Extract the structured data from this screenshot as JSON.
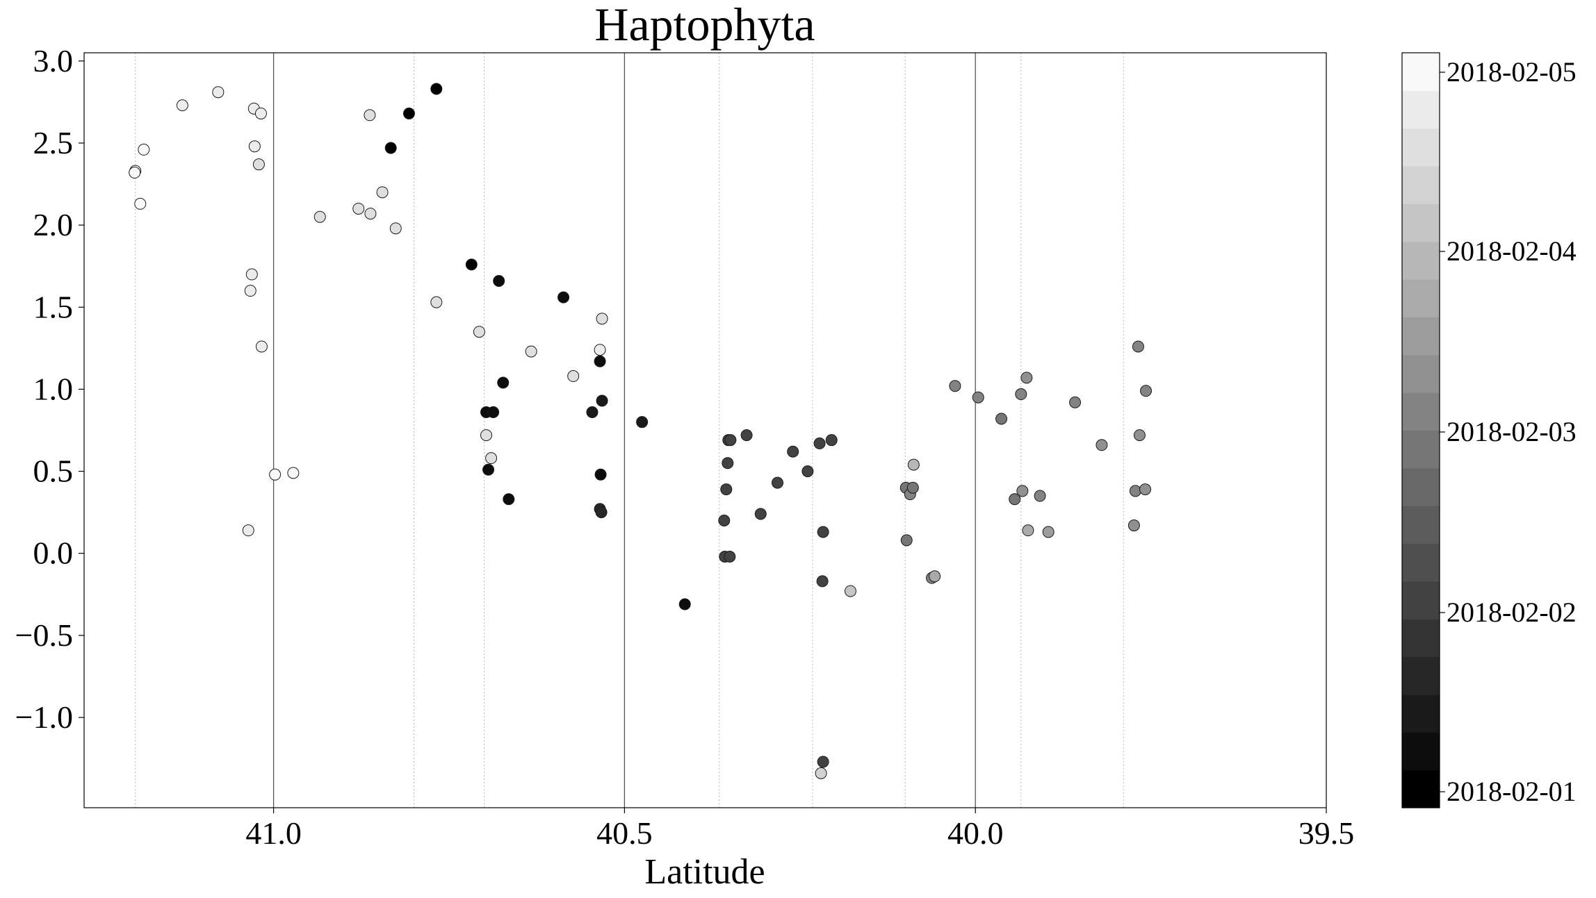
{
  "chart_data": {
    "type": "scatter",
    "title": "Haptophyta",
    "xlabel": "Latitude",
    "ylabel": "",
    "xlim": [
      41.27,
      39.5
    ],
    "ylim": [
      -1.55,
      3.05
    ],
    "x_reversed": true,
    "x_ticks": [
      {
        "value": 41.0,
        "label": "41.0"
      },
      {
        "value": 40.5,
        "label": "40.5"
      },
      {
        "value": 40.0,
        "label": "40.0"
      },
      {
        "value": 39.5,
        "label": "39.5"
      }
    ],
    "y_ticks": [
      {
        "value": 3.0,
        "label": "3.0"
      },
      {
        "value": 2.5,
        "label": "2.5"
      },
      {
        "value": 2.0,
        "label": "2.0"
      },
      {
        "value": 1.5,
        "label": "1.5"
      },
      {
        "value": 1.0,
        "label": "1.0"
      },
      {
        "value": 0.5,
        "label": "0.5"
      },
      {
        "value": 0.0,
        "label": "0.0"
      },
      {
        "value": -0.5,
        "label": "−0.5"
      },
      {
        "value": -1.0,
        "label": "−1.0"
      }
    ],
    "major_vlines": [
      41.0,
      40.5,
      40.0
    ],
    "minor_vlines": [
      41.197,
      40.8,
      40.7,
      40.365,
      40.232,
      40.1,
      39.935,
      39.789
    ],
    "colorbar": {
      "range": [
        "2018-02-01",
        "2018-02-05"
      ],
      "levels": 20,
      "tick_labels": [
        "2018-02-01",
        "2018-02-02",
        "2018-02-03",
        "2018-02-04",
        "2018-02-05"
      ],
      "color_dark": "#000000",
      "color_light": "#f9f9f9"
    },
    "point_fields": [
      "latitude",
      "value",
      "days_since_2018-02-01"
    ],
    "points": [
      [
        41.197,
        2.33,
        3.9
      ],
      [
        41.198,
        2.32,
        3.9
      ],
      [
        41.19,
        2.13,
        3.95
      ],
      [
        41.185,
        2.46,
        3.85
      ],
      [
        41.13,
        2.73,
        3.75
      ],
      [
        41.079,
        2.81,
        3.7
      ],
      [
        41.028,
        2.71,
        3.65
      ],
      [
        41.018,
        2.68,
        3.6
      ],
      [
        41.027,
        2.48,
        3.65
      ],
      [
        41.021,
        2.37,
        3.55
      ],
      [
        41.031,
        1.7,
        3.7
      ],
      [
        41.033,
        1.6,
        3.7
      ],
      [
        41.017,
        1.26,
        3.65
      ],
      [
        41.036,
        0.14,
        3.75
      ],
      [
        40.998,
        0.48,
        3.8
      ],
      [
        40.972,
        0.49,
        3.8
      ],
      [
        40.863,
        2.67,
        3.45
      ],
      [
        40.845,
        2.2,
        3.4
      ],
      [
        40.862,
        2.07,
        3.45
      ],
      [
        40.879,
        2.1,
        3.4
      ],
      [
        40.934,
        2.05,
        3.5
      ],
      [
        40.826,
        1.98,
        3.5
      ],
      [
        40.768,
        1.53,
        3.5
      ],
      [
        40.707,
        1.35,
        3.5
      ],
      [
        40.697,
        0.72,
        3.5
      ],
      [
        40.69,
        0.58,
        3.55
      ],
      [
        40.633,
        1.23,
        3.45
      ],
      [
        40.573,
        1.08,
        3.5
      ],
      [
        40.532,
        1.43,
        3.55
      ],
      [
        40.535,
        1.24,
        3.6
      ],
      [
        40.807,
        2.68,
        0.1
      ],
      [
        40.768,
        2.83,
        0.05
      ],
      [
        40.833,
        2.47,
        0.1
      ],
      [
        40.718,
        1.76,
        0.1
      ],
      [
        40.679,
        1.66,
        0.35
      ],
      [
        40.673,
        1.04,
        0.3
      ],
      [
        40.697,
        0.86,
        0.35
      ],
      [
        40.687,
        0.86,
        0.35
      ],
      [
        40.694,
        0.51,
        0.3
      ],
      [
        40.665,
        0.33,
        0.35
      ],
      [
        40.587,
        1.56,
        0.3
      ],
      [
        40.535,
        1.17,
        0.35
      ],
      [
        40.532,
        0.93,
        0.4
      ],
      [
        40.546,
        0.86,
        0.45
      ],
      [
        40.534,
        0.48,
        0.35
      ],
      [
        40.535,
        0.27,
        0.6
      ],
      [
        40.533,
        0.25,
        0.65
      ],
      [
        40.475,
        0.8,
        0.45
      ],
      [
        40.414,
        -0.31,
        0.3
      ],
      [
        40.352,
        0.69,
        1.1
      ],
      [
        40.349,
        0.69,
        1.05
      ],
      [
        40.353,
        0.55,
        1.0
      ],
      [
        40.355,
        0.39,
        1.05
      ],
      [
        40.358,
        0.2,
        1.1
      ],
      [
        40.357,
        -0.02,
        1.0
      ],
      [
        40.35,
        -0.02,
        1.1
      ],
      [
        40.326,
        0.72,
        1.05
      ],
      [
        40.306,
        0.24,
        1.1
      ],
      [
        40.282,
        0.43,
        1.1
      ],
      [
        40.26,
        0.62,
        1.1
      ],
      [
        40.239,
        0.5,
        1.1
      ],
      [
        40.222,
        0.67,
        1.1
      ],
      [
        40.205,
        0.69,
        1.05
      ],
      [
        40.217,
        0.13,
        1.05
      ],
      [
        40.218,
        -0.17,
        1.15
      ],
      [
        40.217,
        -1.27,
        1.1
      ],
      [
        40.22,
        -1.34,
        3.3
      ],
      [
        40.178,
        -0.23,
        3.05
      ],
      [
        40.098,
        0.08,
        1.9
      ],
      [
        40.099,
        0.4,
        1.95
      ],
      [
        40.093,
        0.36,
        2.0
      ],
      [
        40.089,
        0.4,
        1.9
      ],
      [
        40.088,
        0.54,
        2.9
      ],
      [
        40.062,
        -0.15,
        2.0
      ],
      [
        40.058,
        -0.14,
        2.75
      ],
      [
        40.029,
        1.02,
        2.05
      ],
      [
        39.996,
        0.95,
        2.1
      ],
      [
        39.963,
        0.82,
        1.95
      ],
      [
        39.935,
        0.97,
        2.1
      ],
      [
        39.927,
        1.07,
        2.35
      ],
      [
        39.944,
        0.33,
        1.9
      ],
      [
        39.933,
        0.38,
        2.35
      ],
      [
        39.908,
        0.35,
        2.05
      ],
      [
        39.925,
        0.14,
        2.6
      ],
      [
        39.896,
        0.13,
        2.45
      ],
      [
        39.858,
        0.92,
        2.05
      ],
      [
        39.82,
        0.66,
        2.2
      ],
      [
        39.768,
        1.26,
        2.15
      ],
      [
        39.757,
        0.99,
        2.15
      ],
      [
        39.766,
        0.72,
        2.2
      ],
      [
        39.772,
        0.38,
        2.1
      ],
      [
        39.758,
        0.39,
        2.3
      ],
      [
        39.774,
        0.17,
        2.3
      ]
    ]
  }
}
